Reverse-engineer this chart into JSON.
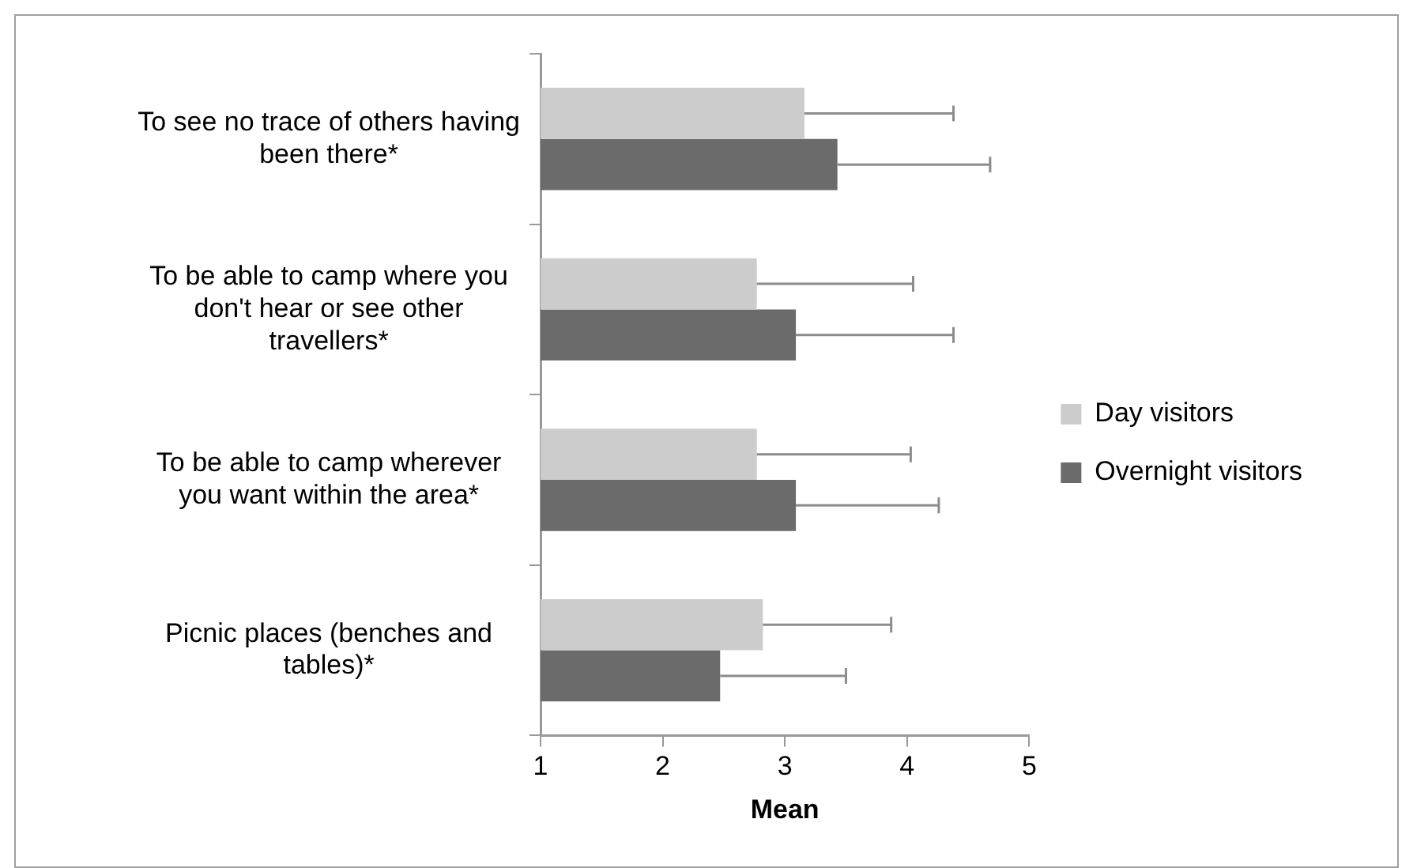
{
  "chart_data": {
    "type": "bar",
    "orientation": "horizontal",
    "xlabel": "Mean",
    "categories": [
      "To see no trace of others having been there*",
      "To be able to camp where you don't hear or see other travellers*",
      "To be able to camp wherever you want within the area*",
      "Picnic places (benches and tables)*"
    ],
    "series": [
      {
        "name": "Day visitors",
        "color": "#cccccc",
        "values": [
          3.16,
          2.77,
          2.77,
          2.82
        ],
        "errors": [
          [
            3.16,
            4.38
          ],
          [
            2.77,
            4.05
          ],
          [
            2.77,
            4.03
          ],
          [
            2.82,
            3.87
          ]
        ]
      },
      {
        "name": "Overnight visitors",
        "color": "#6b6b6b",
        "values": [
          3.43,
          3.09,
          3.09,
          2.47
        ],
        "errors": [
          [
            3.43,
            4.68
          ],
          [
            3.09,
            4.38
          ],
          [
            3.09,
            4.26
          ],
          [
            2.47,
            3.5
          ]
        ]
      }
    ],
    "xlim": [
      1,
      5
    ],
    "xticks": [
      1,
      2,
      3,
      4,
      5
    ],
    "grid": false,
    "legend": "right"
  }
}
